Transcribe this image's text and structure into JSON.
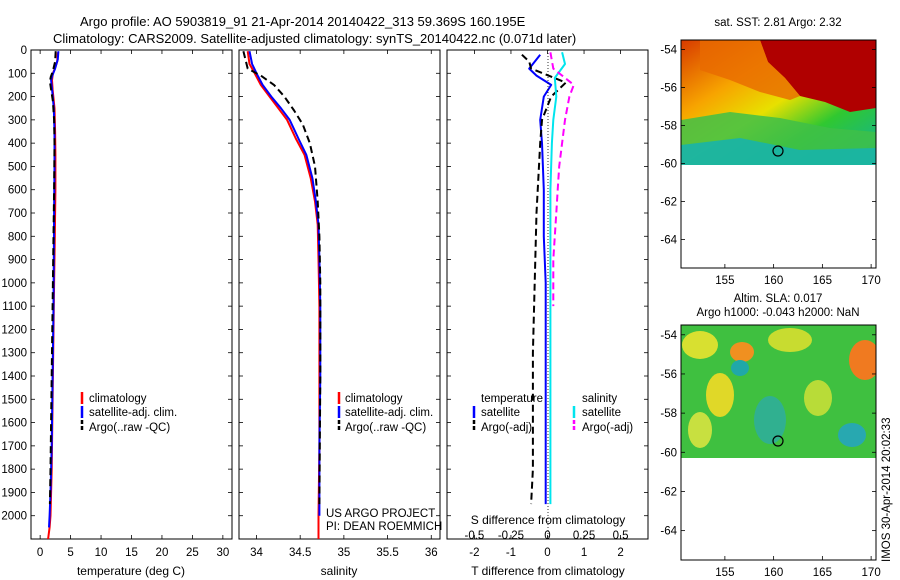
{
  "header": {
    "line1": "Argo profile: AO 5903819_91 21-Apr-2014 20140422_313 59.369S 160.195E",
    "line2": "Climatology: CARS2009. Satellite-adjusted climatology: synTS_20140422.nc (0.071d later)"
  },
  "colors": {
    "climatology": "#ff0000",
    "satellite_adj": "#0000ff",
    "argo": "#000000",
    "sal_satellite": "#00e5ee",
    "sal_argo": "#ff00ff"
  },
  "legend": {
    "climatology": "climatology",
    "satellite_adj": "satellite-adj. clim.",
    "argo": "Argo(..raw -QC)",
    "temperature_head": "temperature",
    "salinity_head": "salinity",
    "satellite": "satellite",
    "argo_adj": "Argo(-adj)"
  },
  "credits": {
    "project": "US ARGO PROJECT",
    "pi": "PI: DEAN ROEMMICH",
    "stamp": "IMOS 30-Apr-2014 20:02:33"
  },
  "maps": {
    "sst_title": "sat. SST: 2.81 Argo: 2.32",
    "sla_title1": "Altim. SLA: 0.017",
    "sla_title2": "Argo h1000: -0.043 h2000: NaN",
    "lon_ticks": [
      "155",
      "160",
      "165",
      "170"
    ],
    "lat_ticks": [
      "-54",
      "-56",
      "-58",
      "-60",
      "-62",
      "-64"
    ],
    "lon_range": [
      150.5,
      170.5
    ],
    "lat_range": [
      -53.5,
      -65.5
    ],
    "argo_position": {
      "lon": 160.195,
      "lat": -59.369
    }
  },
  "chart_data": [
    {
      "type": "line",
      "xlabel": "temperature (deg C)",
      "ylabel": "",
      "xlim": [
        -1.5,
        31.5
      ],
      "ylim": [
        2100,
        0
      ],
      "xticks": [
        "0",
        "5",
        "10",
        "15",
        "20",
        "25",
        "30"
      ],
      "yticks": [
        "0",
        "100",
        "200",
        "300",
        "400",
        "500",
        "600",
        "700",
        "800",
        "900",
        "1000",
        "1100",
        "1200",
        "1300",
        "1400",
        "1500",
        "1600",
        "1700",
        "1800",
        "1900",
        "2000"
      ],
      "series": [
        {
          "name": "climatology",
          "color": "#ff0000",
          "dash": "",
          "x": [
            2.9,
            2.8,
            2.4,
            2.1,
            1.95,
            2.05,
            2.35,
            2.45,
            2.5,
            2.5,
            2.4,
            2.3,
            2.2,
            2.1,
            2.0,
            1.9,
            1.8,
            1.7,
            1.55,
            1.3
          ],
          "y": [
            10,
            50,
            80,
            100,
            130,
            170,
            250,
            350,
            450,
            600,
            800,
            1000,
            1200,
            1400,
            1600,
            1800,
            1900,
            2000,
            2050,
            2100
          ]
        },
        {
          "name": "satellite-adj. clim.",
          "color": "#0000ff",
          "dash": "",
          "x": [
            3.0,
            2.9,
            2.45,
            2.0,
            1.8,
            2.0,
            2.25,
            2.35,
            2.35,
            2.3,
            2.25,
            2.2,
            2.1,
            2.0,
            1.9,
            1.8,
            1.7,
            1.55,
            1.45
          ],
          "y": [
            5,
            40,
            80,
            110,
            130,
            180,
            250,
            350,
            500,
            700,
            900,
            1100,
            1300,
            1500,
            1700,
            1800,
            1900,
            2000,
            2050
          ]
        },
        {
          "name": "Argo(..raw -QC)",
          "color": "#000000",
          "dash": "7,4",
          "x": [
            2.55,
            2.45,
            2.1,
            1.75,
            1.6,
            1.8,
            2.1,
            2.3,
            2.35,
            2.3,
            2.2,
            2.1,
            2.0,
            1.9,
            1.8,
            1.7,
            1.6
          ],
          "y": [
            5,
            50,
            90,
            115,
            135,
            170,
            220,
            300,
            400,
            600,
            800,
            1000,
            1200,
            1400,
            1600,
            1800,
            1950
          ]
        }
      ]
    },
    {
      "type": "line",
      "xlabel": "salinity",
      "ylabel": "",
      "xlim": [
        33.8,
        36.1
      ],
      "ylim": [
        2100,
        0
      ],
      "xticks": [
        "34",
        "34.5",
        "35",
        "35.5",
        "36"
      ],
      "series": [
        {
          "name": "climatology",
          "color": "#ff0000",
          "dash": "",
          "x": [
            33.9,
            33.92,
            33.98,
            34.05,
            34.15,
            34.25,
            34.35,
            34.45,
            34.55,
            34.62,
            34.67,
            34.7,
            34.71,
            34.72,
            34.72,
            34.72,
            34.71,
            34.71
          ],
          "y": [
            5,
            60,
            100,
            150,
            200,
            250,
            300,
            380,
            450,
            550,
            650,
            750,
            900,
            1100,
            1400,
            1700,
            2000,
            2100
          ]
        },
        {
          "name": "satellite-adj. clim.",
          "color": "#0000ff",
          "dash": "",
          "x": [
            33.92,
            33.95,
            34.0,
            34.07,
            34.17,
            34.28,
            34.38,
            34.48,
            34.57,
            34.64,
            34.68,
            34.71,
            34.72,
            34.73,
            34.73,
            34.72,
            34.72
          ],
          "y": [
            5,
            60,
            100,
            150,
            200,
            250,
            300,
            380,
            450,
            550,
            650,
            750,
            900,
            1100,
            1400,
            1700,
            2000
          ]
        },
        {
          "name": "Argo(..raw -QC)",
          "color": "#000000",
          "dash": "7,4",
          "x": [
            33.85,
            33.9,
            34.05,
            34.2,
            34.32,
            34.43,
            34.53,
            34.61,
            34.67,
            34.7,
            34.72,
            34.73,
            34.73,
            34.72
          ],
          "y": [
            5,
            80,
            110,
            150,
            200,
            260,
            320,
            400,
            500,
            650,
            800,
            1000,
            1400,
            1950
          ]
        }
      ]
    },
    {
      "type": "line",
      "xlabel": "T difference from climatology",
      "title_below": "S difference from climatology",
      "xlim": [
        -2.75,
        2.75
      ],
      "s_xlim": [
        -0.6875,
        0.6875
      ],
      "ylim": [
        2100,
        0
      ],
      "xticks": [
        "-2",
        "-1",
        "0",
        "1",
        "2"
      ],
      "s_xticks": [
        "-0.5",
        "-0.25",
        "0",
        "0.25",
        "0.5"
      ],
      "series": [
        {
          "name": "satellite",
          "group": "temperature",
          "color": "#0000ff",
          "dash": "",
          "x": [
            -0.2,
            -0.5,
            -0.3,
            0.1,
            -0.1,
            -0.2,
            -0.15,
            -0.1,
            -0.1,
            -0.05,
            -0.05,
            -0.05,
            -0.05,
            -0.05
          ],
          "y": [
            20,
            80,
            110,
            150,
            200,
            300,
            400,
            600,
            800,
            1000,
            1300,
            1600,
            1800,
            1950
          ]
        },
        {
          "name": "Argo(-adj)",
          "group": "temperature",
          "color": "#000000",
          "dash": "7,4",
          "x": [
            -0.7,
            -0.5,
            -0.45,
            0.5,
            0.1,
            -0.15,
            -0.2,
            -0.3,
            -0.35,
            -0.4,
            -0.4,
            -0.4,
            -0.45
          ],
          "y": [
            20,
            50,
            80,
            140,
            200,
            300,
            400,
            700,
            1000,
            1300,
            1600,
            1800,
            1950
          ]
        },
        {
          "name": "satellite",
          "group": "salinity",
          "color": "#00e5ee",
          "dash": "",
          "x": [
            0.1,
            0.12,
            0.05,
            0.06,
            0.04,
            0.03,
            0.02,
            0.02,
            0.02,
            0.02,
            0.02,
            0.02,
            0.02
          ],
          "y": [
            10,
            60,
            120,
            200,
            300,
            400,
            600,
            800,
            1000,
            1300,
            1600,
            1800,
            1950
          ]
        },
        {
          "name": "Argo(-adj)",
          "group": "salinity",
          "color": "#ff00ff",
          "dash": "7,4",
          "x": [
            0.02,
            0.04,
            0.18,
            0.15,
            0.12,
            0.1,
            0.08,
            0.07,
            0.06,
            0.05,
            0.04,
            0.04,
            0.04
          ],
          "y": [
            10,
            80,
            150,
            200,
            300,
            400,
            500,
            600,
            700,
            800,
            900,
            1000,
            1100
          ]
        }
      ]
    }
  ]
}
